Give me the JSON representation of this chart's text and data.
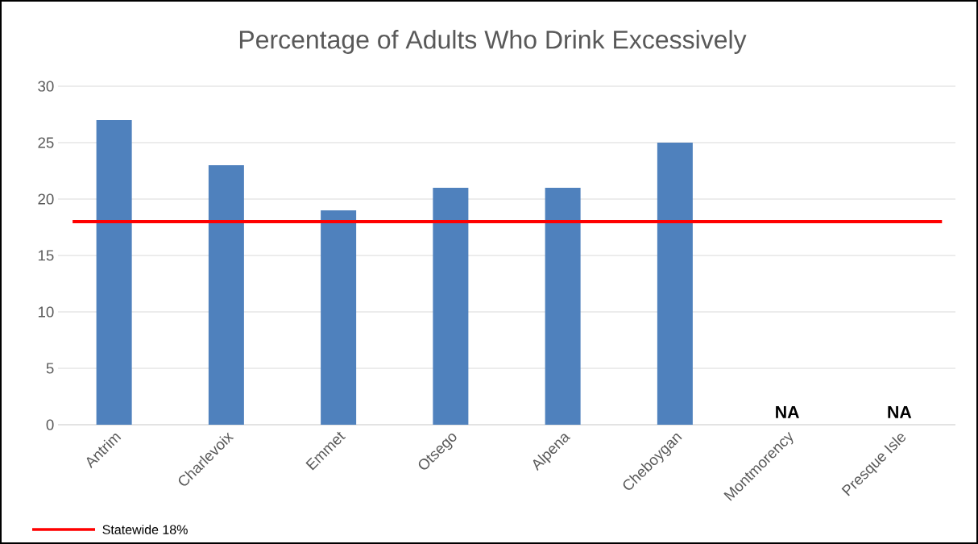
{
  "chart_data": {
    "type": "bar",
    "title": "Percentage of Adults Who Drink Excessively",
    "categories": [
      "Antrim",
      "Charlevoix",
      "Emmet",
      "Otsego",
      "Alpena",
      "Cheboygan",
      "Montmorency",
      "Presque Isle"
    ],
    "values": [
      27,
      23,
      19,
      21,
      21,
      25,
      null,
      null
    ],
    "color": "#4f81bd",
    "ylim": [
      0,
      30
    ],
    "yticks": [
      0,
      5,
      10,
      15,
      20,
      25,
      30
    ],
    "grid": "y",
    "ref_lines": [
      {
        "axis": "y",
        "value": 18,
        "label": "Statewide 18%",
        "color": "#ff0000"
      }
    ],
    "annotations": [
      "NA",
      "NA"
    ]
  }
}
